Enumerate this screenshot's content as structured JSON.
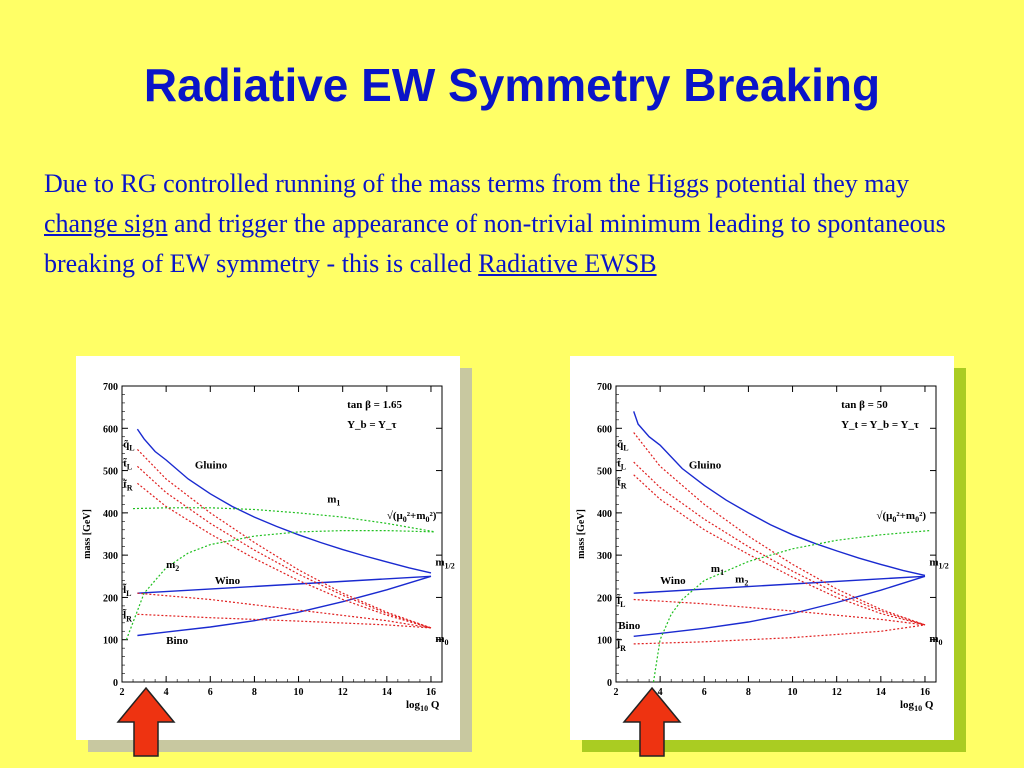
{
  "slide": {
    "title": "Radiative EW Symmetry Breaking",
    "paragraph": {
      "part1": "Due to RG controlled running  of the mass terms from the Higgs potential they may ",
      "link1": "change sign",
      "part2": " and trigger the appearance of non-trivial minimum leading to spontaneous breaking of EW symmetry  -  this is called  ",
      "link2": "Radiative EWSB "
    }
  },
  "colors": {
    "background": "#ffff66",
    "title": "#0a14c8",
    "gaugino_lines": "#1a2ad0",
    "sfermion_lines": "#e02020",
    "higgs_lines": "#20c020",
    "arrow": "#ee3311",
    "shadow_left": "#c8c8a0",
    "shadow_right": "#aacc22"
  },
  "chart_data": [
    {
      "type": "line",
      "xlabel_main": "log",
      "xlabel_sub": "10",
      "xlabel_tail": " Q",
      "ylabel": "mass [GeV]",
      "xlim": [
        2,
        16.5
      ],
      "ylim": [
        0,
        700
      ],
      "x_ticks": [
        2,
        4,
        6,
        8,
        10,
        12,
        14,
        16
      ],
      "y_ticks": [
        0,
        100,
        200,
        300,
        400,
        500,
        600,
        700
      ],
      "params": [
        {
          "text": "tan β = 1.65"
        },
        {
          "text": "Y_b = Y_τ"
        }
      ],
      "series": [
        {
          "name": "Gluino",
          "color": "blue",
          "dash": false,
          "x": [
            2.7,
            3,
            3.5,
            4,
            5,
            6,
            7,
            8,
            9,
            10,
            11,
            12,
            13,
            14,
            15,
            16
          ],
          "y": [
            598,
            575,
            545,
            525,
            480,
            445,
            415,
            390,
            368,
            348,
            330,
            313,
            298,
            284,
            270,
            258
          ]
        },
        {
          "name": "Wino",
          "color": "blue",
          "dash": false,
          "x": [
            2.7,
            16
          ],
          "y": [
            210,
            250
          ]
        },
        {
          "name": "Bino",
          "color": "blue",
          "dash": false,
          "x": [
            2.7,
            4,
            6,
            8,
            10,
            12,
            14,
            16
          ],
          "y": [
            110,
            118,
            130,
            145,
            165,
            190,
            218,
            250
          ]
        },
        {
          "name": "q̃_L",
          "color": "red",
          "dash": true,
          "x": [
            2.7,
            4,
            6,
            8,
            10,
            12,
            14,
            16
          ],
          "y": [
            550,
            480,
            400,
            330,
            265,
            210,
            165,
            128
          ]
        },
        {
          "name": "t̃_L",
          "color": "red",
          "dash": true,
          "x": [
            2.7,
            4,
            6,
            8,
            10,
            12,
            14,
            16
          ],
          "y": [
            510,
            448,
            375,
            312,
            255,
            205,
            162,
            128
          ]
        },
        {
          "name": "t̃_R",
          "color": "red",
          "dash": true,
          "x": [
            2.7,
            4,
            6,
            8,
            10,
            12,
            14,
            16
          ],
          "y": [
            470,
            415,
            350,
            292,
            240,
            195,
            158,
            128
          ]
        },
        {
          "name": "l̃_L",
          "color": "red",
          "dash": true,
          "x": [
            2.7,
            6,
            10,
            14,
            16
          ],
          "y": [
            210,
            195,
            170,
            145,
            128
          ]
        },
        {
          "name": "l̃_R",
          "color": "red",
          "dash": true,
          "x": [
            2.7,
            6,
            10,
            14,
            16
          ],
          "y": [
            160,
            152,
            144,
            135,
            128
          ]
        },
        {
          "name": "m_1",
          "color": "green",
          "dash": true,
          "x": [
            2.5,
            4,
            6,
            8,
            10,
            12,
            14,
            16.2
          ],
          "y": [
            410,
            412,
            412,
            408,
            400,
            390,
            375,
            355
          ]
        },
        {
          "name": "m_2",
          "color": "green",
          "dash": true,
          "x": [
            2.2,
            3,
            4,
            5,
            6,
            8,
            10,
            12,
            14,
            16.2
          ],
          "y": [
            100,
            210,
            270,
            305,
            325,
            345,
            355,
            358,
            358,
            355
          ]
        }
      ],
      "labels": [
        {
          "text": "Gluino",
          "x": 5.3,
          "y": 505
        },
        {
          "text": "m",
          "sub": "1",
          "x": 11.3,
          "y": 425
        },
        {
          "text": "√(μ",
          "sub": "0",
          "tail": "²+m",
          "sub2": "0",
          "tail2": "²)",
          "x": 14.0,
          "y": 385
        },
        {
          "text": "m",
          "sub": "2",
          "x": 4.0,
          "y": 270
        },
        {
          "text": "m",
          "sub": "1/2",
          "x": 16.2,
          "y": 275
        },
        {
          "text": "Wino",
          "x": 6.2,
          "y": 232
        },
        {
          "text": "Bino",
          "x": 4.0,
          "y": 90
        },
        {
          "text": "m",
          "sub": "0",
          "x": 16.2,
          "y": 95
        },
        {
          "text": "q̃",
          "sub": "L",
          "x": 2.05,
          "y": 555
        },
        {
          "text": "t̃",
          "sub": "L",
          "x": 2.05,
          "y": 510
        },
        {
          "text": "t̃",
          "sub": "R",
          "x": 2.05,
          "y": 460
        },
        {
          "text": "l̃",
          "sub": "L",
          "x": 2.05,
          "y": 210
        },
        {
          "text": "l̃",
          "sub": "R",
          "x": 2.05,
          "y": 150
        }
      ]
    },
    {
      "type": "line",
      "xlabel_main": "log",
      "xlabel_sub": "10",
      "xlabel_tail": " Q",
      "ylabel": "mass [GeV]",
      "xlim": [
        2,
        16.5
      ],
      "ylim": [
        0,
        700
      ],
      "x_ticks": [
        2,
        4,
        6,
        8,
        10,
        12,
        14,
        16
      ],
      "y_ticks": [
        0,
        100,
        200,
        300,
        400,
        500,
        600,
        700
      ],
      "params": [
        {
          "text": "tan β = 50"
        },
        {
          "text": "Y_t = Y_b = Y_τ"
        }
      ],
      "series": [
        {
          "name": "Gluino",
          "color": "blue",
          "dash": false,
          "x": [
            2.8,
            3,
            3.5,
            4,
            5,
            6,
            7,
            8,
            9,
            10,
            11,
            12,
            13,
            14,
            15,
            16
          ],
          "y": [
            640,
            610,
            580,
            560,
            505,
            465,
            430,
            400,
            372,
            348,
            328,
            310,
            293,
            278,
            264,
            252
          ]
        },
        {
          "name": "Wino",
          "color": "blue",
          "dash": false,
          "x": [
            2.8,
            16
          ],
          "y": [
            210,
            250
          ]
        },
        {
          "name": "Bino",
          "color": "blue",
          "dash": false,
          "x": [
            2.8,
            4,
            6,
            8,
            10,
            12,
            14,
            16
          ],
          "y": [
            108,
            115,
            127,
            142,
            162,
            188,
            217,
            250
          ]
        },
        {
          "name": "q̃_L",
          "color": "red",
          "dash": true,
          "x": [
            2.8,
            4,
            6,
            8,
            10,
            12,
            14,
            16
          ],
          "y": [
            590,
            510,
            420,
            345,
            278,
            220,
            172,
            135
          ]
        },
        {
          "name": "t̃_L",
          "color": "red",
          "dash": true,
          "x": [
            2.8,
            4,
            6,
            8,
            10,
            12,
            14,
            16
          ],
          "y": [
            520,
            460,
            385,
            320,
            262,
            210,
            168,
            135
          ]
        },
        {
          "name": "t̃_R",
          "color": "red",
          "dash": true,
          "x": [
            2.8,
            4,
            6,
            8,
            10,
            12,
            14,
            16
          ],
          "y": [
            490,
            432,
            360,
            302,
            248,
            200,
            162,
            135
          ]
        },
        {
          "name": "l̃_L",
          "color": "red",
          "dash": true,
          "x": [
            2.8,
            6,
            10,
            14,
            16
          ],
          "y": [
            195,
            185,
            168,
            148,
            135
          ]
        },
        {
          "name": "l̃_R",
          "color": "red",
          "dash": true,
          "x": [
            2.8,
            6,
            10,
            14,
            16
          ],
          "y": [
            90,
            95,
            105,
            120,
            135
          ]
        },
        {
          "name": "m_2",
          "color": "green",
          "dash": true,
          "x": [
            3.7,
            4,
            4.5,
            5,
            6,
            8,
            10,
            12,
            14,
            16.2
          ],
          "y": [
            0,
            100,
            160,
            195,
            240,
            285,
            315,
            335,
            348,
            358
          ]
        }
      ],
      "labels": [
        {
          "text": "Gluino",
          "x": 5.3,
          "y": 505
        },
        {
          "text": "√(μ",
          "sub": "0",
          "tail": "²+m",
          "sub2": "0",
          "tail2": "²)",
          "x": 13.8,
          "y": 385
        },
        {
          "text": "m",
          "sub": "1",
          "x": 6.3,
          "y": 260
        },
        {
          "text": "m",
          "sub": "2",
          "x": 7.4,
          "y": 235
        },
        {
          "text": "m",
          "sub": "1/2",
          "x": 16.2,
          "y": 275
        },
        {
          "text": "Wino",
          "x": 4.0,
          "y": 232
        },
        {
          "text": "Bino",
          "x": 2.1,
          "y": 125
        },
        {
          "text": "m",
          "sub": "0",
          "x": 16.2,
          "y": 95
        },
        {
          "text": "q̃",
          "sub": "L",
          "x": 2.05,
          "y": 555
        },
        {
          "text": "t̃",
          "sub": "L",
          "x": 2.05,
          "y": 510
        },
        {
          "text": "t̃",
          "sub": "R",
          "x": 2.05,
          "y": 465
        },
        {
          "text": "l̃",
          "sub": "L",
          "x": 2.05,
          "y": 185
        },
        {
          "text": "l̃",
          "sub": "R",
          "x": 2.05,
          "y": 80
        }
      ]
    }
  ]
}
